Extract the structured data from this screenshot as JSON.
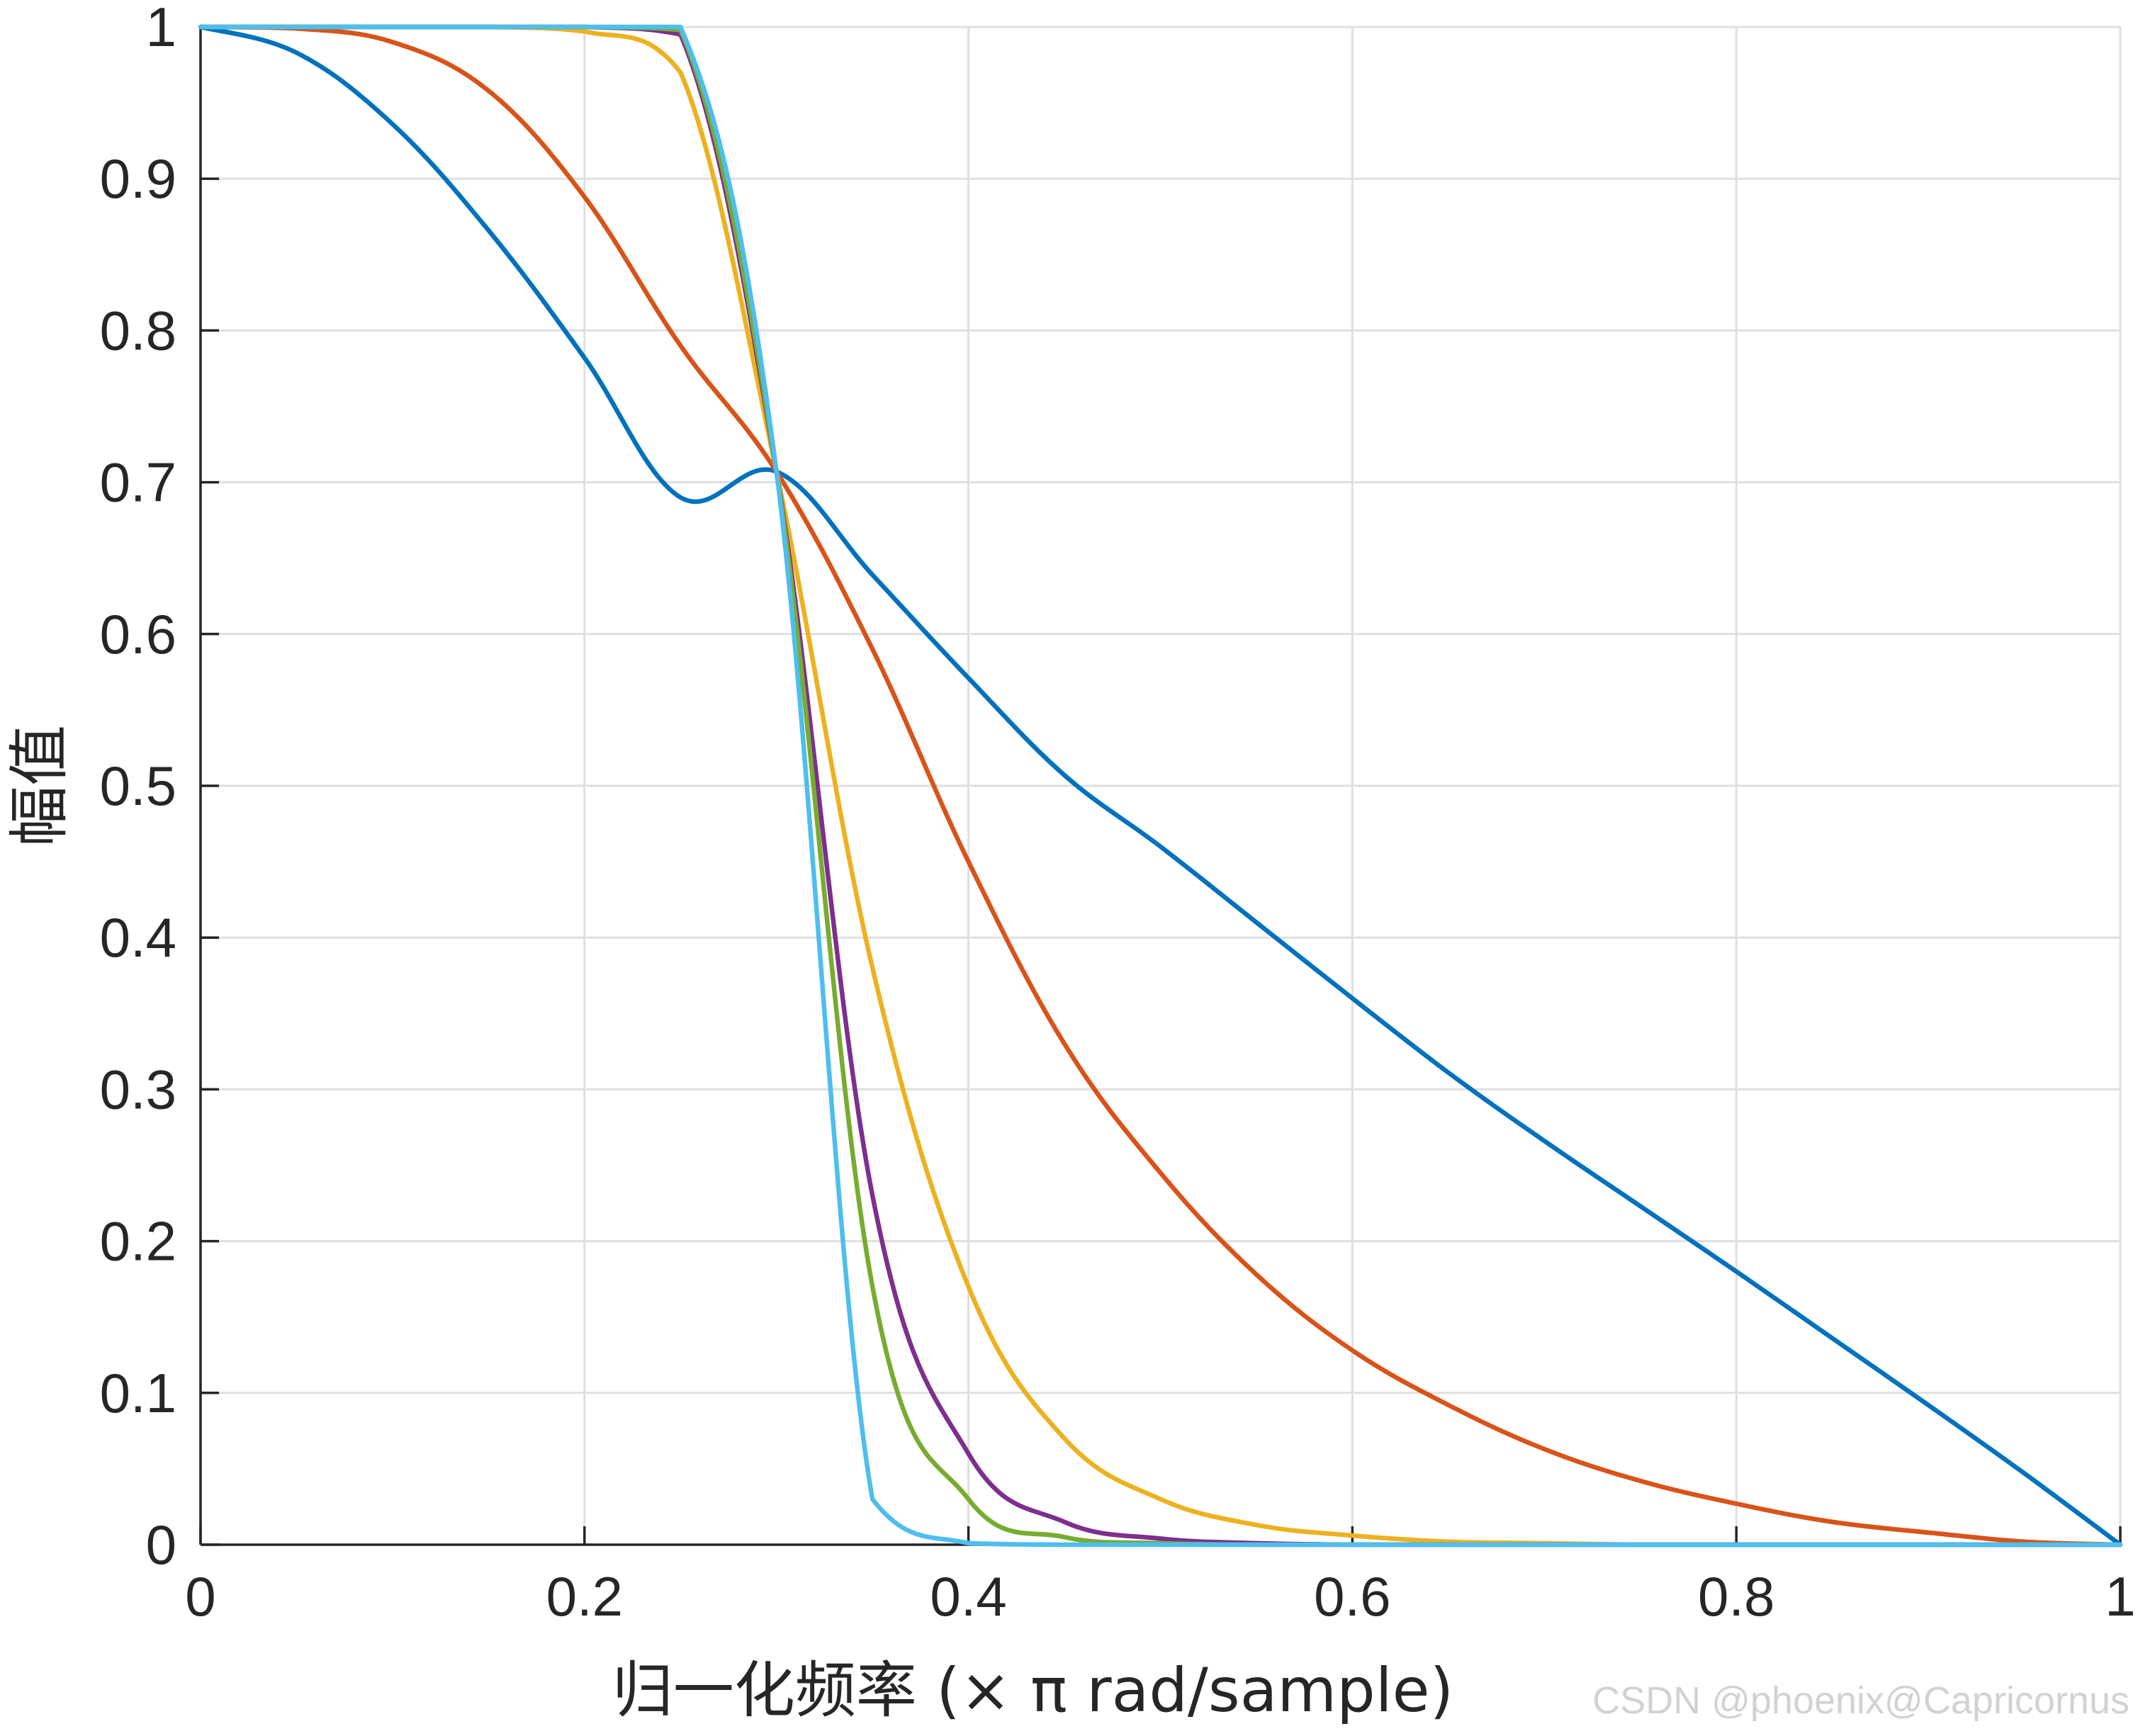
{
  "chart_data": {
    "type": "line",
    "title": "",
    "xlabel": "归一化频率 (× π rad/sample)",
    "ylabel": "幅值",
    "xlim": [
      0,
      1
    ],
    "ylim": [
      0,
      1
    ],
    "grid": true,
    "xticks": [
      0,
      0.2,
      0.4,
      0.6,
      0.8,
      1
    ],
    "xtick_labels": [
      "0",
      "0.2",
      "0.4",
      "0.6",
      "0.8",
      "1"
    ],
    "yticks": [
      0,
      0.1,
      0.2,
      0.3,
      0.4,
      0.5,
      0.6,
      0.7,
      0.8,
      0.9,
      1
    ],
    "ytick_labels": [
      "0",
      "0.1",
      "0.2",
      "0.3",
      "0.4",
      "0.5",
      "0.6",
      "0.7",
      "0.8",
      "0.9",
      "1"
    ],
    "x": [
      0,
      0.05,
      0.1,
      0.15,
      0.2,
      0.25,
      0.3,
      0.35,
      0.4,
      0.45,
      0.5,
      0.55,
      0.6,
      0.65,
      0.7,
      0.75,
      0.8,
      0.85,
      0.9,
      0.95,
      1
    ],
    "series": [
      {
        "name": "blue",
        "color": "#0072BD",
        "values": [
          1,
          0.983,
          0.936,
          0.866,
          0.782,
          0.69,
          0.707,
          0.639,
          0.571,
          0.507,
          0.46,
          0.41,
          0.36,
          0.311,
          0.266,
          0.223,
          0.18,
          0.136,
          0.092,
          0.047,
          0
        ]
      },
      {
        "name": "orange",
        "color": "#D95319",
        "values": [
          1,
          0.999,
          0.99,
          0.958,
          0.888,
          0.79,
          0.707,
          0.59,
          0.45,
          0.33,
          0.245,
          0.178,
          0.128,
          0.092,
          0.063,
          0.042,
          0.027,
          0.015,
          0.008,
          0.002,
          0
        ]
      },
      {
        "name": "yellow",
        "color": "#EDB120",
        "values": [
          1,
          1,
          1,
          1,
          0.997,
          0.97,
          0.707,
          0.38,
          0.17,
          0.07,
          0.03,
          0.013,
          0.006,
          0.002,
          0.001,
          0,
          0,
          0,
          0,
          0,
          0
        ]
      },
      {
        "name": "purple",
        "color": "#7E2F8E",
        "values": [
          1,
          1,
          1,
          1,
          1,
          0.995,
          0.707,
          0.23,
          0.06,
          0.015,
          0.004,
          0.001,
          0,
          0,
          0,
          0,
          0,
          0,
          0,
          0,
          0
        ]
      },
      {
        "name": "green",
        "color": "#77AC30",
        "values": [
          1,
          1,
          1,
          1,
          1,
          0.998,
          0.707,
          0.17,
          0.03,
          0.005,
          0.001,
          0,
          0,
          0,
          0,
          0,
          0,
          0,
          0,
          0,
          0
        ]
      },
      {
        "name": "cyan",
        "color": "#4DBEEE",
        "values": [
          1,
          1,
          1,
          1,
          1,
          1,
          0.707,
          0.03,
          0.001,
          0,
          0,
          0,
          0,
          0,
          0,
          0,
          0,
          0,
          0,
          0,
          0
        ]
      }
    ]
  },
  "watermark": "CSDN @phoenix@Capricornus"
}
